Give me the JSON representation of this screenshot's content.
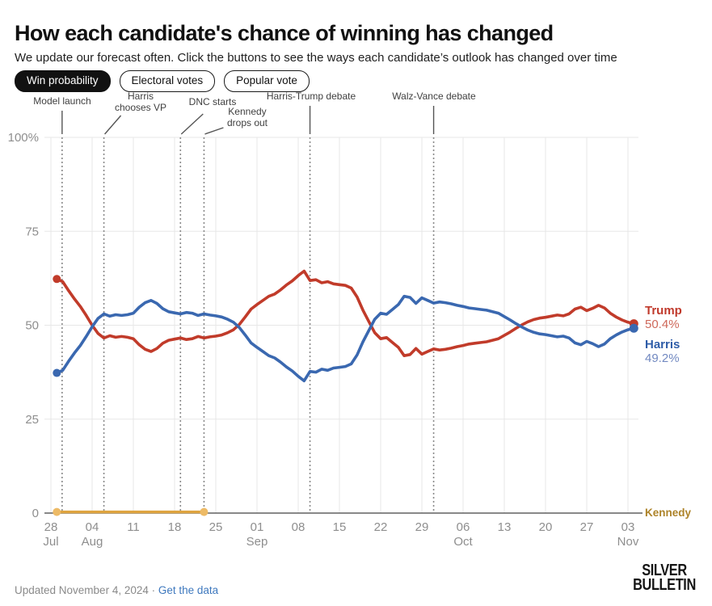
{
  "header": {
    "title": "How each candidate's chance of winning has changed",
    "subtitle": "We update our forecast often. Click the buttons to see the ways each candidate’s outlook has changed over time"
  },
  "toolbar": {
    "buttons": [
      {
        "label": "Win probability",
        "active": true
      },
      {
        "label": "Electoral votes",
        "active": false
      },
      {
        "label": "Popular vote",
        "active": false
      }
    ]
  },
  "footer": {
    "updated": "Updated November 4, 2024",
    "separator": "·",
    "link": "Get the data",
    "logo_line1": "SILVER",
    "logo_line2": "BULLETIN"
  },
  "chart_data": {
    "type": "line",
    "title": "Win probability over time",
    "unit": "percent",
    "ylim": [
      0,
      100
    ],
    "x_start": "2024-07-29",
    "x_end": "2024-11-04",
    "grid": true,
    "style": {
      "grid_color": "#E7E7E7",
      "axis_color": "#606060",
      "tick_color": "#8E8E8E",
      "annotation_line_color": "#8A8A8A",
      "annotation_pointer_color": "#555555"
    },
    "y_axis": {
      "tick_labels": [
        "100%",
        "75",
        "50",
        "25",
        "0"
      ],
      "tick_values": [
        100,
        75,
        50,
        25,
        0
      ]
    },
    "x_axis": {
      "ticks": [
        {
          "day": "28",
          "month": "Jul"
        },
        {
          "day": "04",
          "month": "Aug"
        },
        {
          "day": "11",
          "month": ""
        },
        {
          "day": "18",
          "month": ""
        },
        {
          "day": "25",
          "month": ""
        },
        {
          "day": "01",
          "month": "Sep"
        },
        {
          "day": "08",
          "month": ""
        },
        {
          "day": "15",
          "month": ""
        },
        {
          "day": "22",
          "month": ""
        },
        {
          "day": "29",
          "month": ""
        },
        {
          "day": "06",
          "month": "Oct"
        },
        {
          "day": "13",
          "month": ""
        },
        {
          "day": "20",
          "month": ""
        },
        {
          "day": "27",
          "month": ""
        },
        {
          "day": "03",
          "month": "Nov"
        }
      ]
    },
    "annotations": [
      {
        "lines": [
          "Model launch"
        ],
        "day_offset": 1.9
      },
      {
        "lines": [
          "Harris",
          "chooses VP"
        ],
        "day_offset": 9
      },
      {
        "lines": [
          "DNC starts"
        ],
        "day_offset": 22
      },
      {
        "lines": [
          "Kennedy",
          "drops out"
        ],
        "day_offset": 26
      },
      {
        "lines": [
          "Harris-Trump debate"
        ],
        "day_offset": 44
      },
      {
        "lines": [
          "Walz-Vance debate"
        ],
        "day_offset": 65
      }
    ],
    "series": [
      {
        "name": "Trump",
        "color": "#C13B2A",
        "label_color": "#C0392B",
        "value_color": "#CE685A",
        "end_label": "Trump",
        "end_value": "50.4%",
        "values": [
          62.3,
          61.6,
          59.2,
          57.0,
          55.0,
          52.6,
          50.0,
          47.8,
          46.6,
          47.2,
          46.8,
          47.0,
          46.8,
          46.4,
          44.8,
          43.6,
          43.0,
          43.8,
          45.2,
          46.0,
          46.3,
          46.6,
          46.2,
          46.4,
          47.0,
          46.6,
          46.9,
          47.1,
          47.4,
          48.0,
          48.8,
          50.2,
          52.2,
          54.3,
          55.5,
          56.6,
          57.7,
          58.3,
          59.4,
          60.7,
          61.8,
          63.2,
          64.4,
          61.9,
          62.1,
          61.3,
          61.6,
          61.0,
          60.8,
          60.6,
          59.9,
          57.5,
          54.0,
          51.0,
          48.0,
          46.4,
          46.7,
          45.4,
          44.1,
          41.9,
          42.2,
          43.8,
          42.3,
          43.0,
          43.7,
          43.4,
          43.6,
          43.9,
          44.3,
          44.6,
          45.0,
          45.2,
          45.4,
          45.6,
          46.0,
          46.4,
          47.3,
          48.2,
          49.2,
          50.1,
          50.9,
          51.5,
          51.9,
          52.1,
          52.4,
          52.7,
          52.5,
          53.0,
          54.3,
          54.8,
          53.9,
          54.5,
          55.3,
          54.6,
          53.2,
          52.2,
          51.4,
          50.8,
          50.4
        ]
      },
      {
        "name": "Harris",
        "color": "#3A68B0",
        "label_color": "#2F5DA8",
        "value_color": "#7289C1",
        "end_label": "Harris",
        "end_value": "49.2%",
        "values": [
          37.3,
          38.0,
          40.4,
          42.6,
          44.6,
          47.0,
          49.6,
          51.8,
          53.0,
          52.4,
          52.8,
          52.6,
          52.8,
          53.2,
          54.8,
          56.0,
          56.6,
          55.8,
          54.4,
          53.6,
          53.3,
          53.0,
          53.4,
          53.2,
          52.6,
          53.0,
          52.7,
          52.5,
          52.2,
          51.6,
          50.8,
          49.4,
          47.4,
          45.3,
          44.1,
          43.0,
          41.9,
          41.3,
          40.2,
          38.9,
          37.8,
          36.4,
          35.2,
          37.7,
          37.5,
          38.3,
          38.0,
          38.6,
          38.8,
          39.0,
          39.7,
          42.1,
          45.6,
          48.6,
          51.6,
          53.2,
          52.9,
          54.2,
          55.5,
          57.7,
          57.4,
          55.8,
          57.3,
          56.6,
          55.9,
          56.2,
          56.0,
          55.7,
          55.3,
          55.0,
          54.6,
          54.4,
          54.2,
          54.0,
          53.6,
          53.2,
          52.3,
          51.4,
          50.4,
          49.5,
          48.7,
          48.1,
          47.7,
          47.5,
          47.2,
          46.9,
          47.1,
          46.6,
          45.3,
          44.8,
          45.7,
          45.1,
          44.3,
          45.0,
          46.4,
          47.4,
          48.2,
          48.8,
          49.2
        ]
      },
      {
        "name": "Kennedy",
        "color": "#DFA43F",
        "dot_color": "#EDBA66",
        "label_color": "#AD8329",
        "end_label": "Kennedy",
        "flat_value": 0.3,
        "start_day_offset": 1,
        "end_day_offset": 26
      }
    ]
  }
}
